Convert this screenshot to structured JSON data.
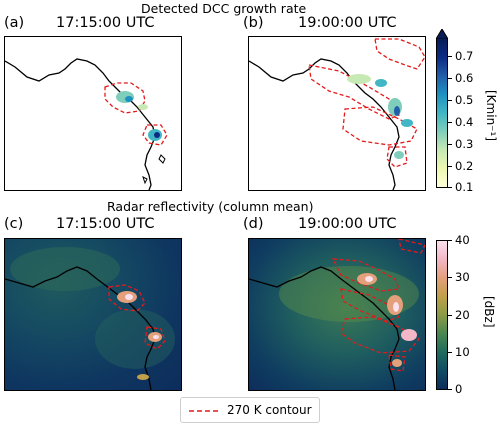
{
  "figure": {
    "top_title": "Detected DCC growth rate",
    "bottom_title": "Radar reflectivity (column mean)",
    "panels": [
      {
        "label": "(a)",
        "time": "17:15:00 UTC"
      },
      {
        "label": "(b)",
        "time": "19:00:00 UTC"
      },
      {
        "label": "(c)",
        "time": "17:15:00 UTC"
      },
      {
        "label": "(d)",
        "time": "19:00:00 UTC"
      }
    ],
    "colorbar_top": {
      "label": "[Kmin⁻¹]",
      "ticks": [
        "0.7",
        "0.6",
        "0.5",
        "0.4",
        "0.3",
        "0.2",
        "0.1"
      ],
      "range": [
        0.1,
        0.7
      ],
      "colormap": [
        "#ffffd9",
        "#edf8b1",
        "#c7e9b4",
        "#7fcdbb",
        "#41b6c4",
        "#1d91c0",
        "#225ea8",
        "#0c2c84",
        "#081d58"
      ]
    },
    "colorbar_bottom": {
      "label": "[dBz]",
      "ticks": [
        "40",
        "30",
        "20",
        "10",
        "0"
      ],
      "range": [
        0,
        40
      ],
      "colormap": [
        "#0d2d5c",
        "#0f4d63",
        "#1f6b5e",
        "#4a8751",
        "#8b9b45",
        "#c0a04a",
        "#e3a07a",
        "#f3b6c6",
        "#fbe0ee"
      ]
    },
    "legend": {
      "label": "270 K contour",
      "color": "#e41a1c"
    }
  }
}
